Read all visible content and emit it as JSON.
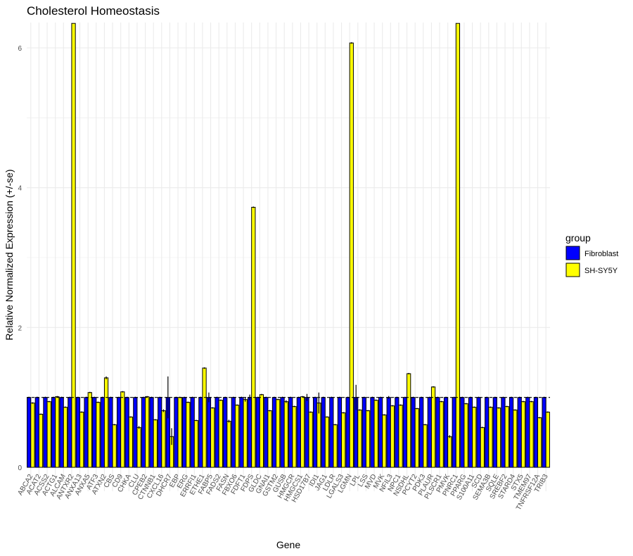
{
  "chart_data": {
    "type": "bar",
    "title": "Cholesterol Homeostasis",
    "xlabel": "Gene",
    "ylabel": "Relative Normalized Expression (+/-se)",
    "ylim": [
      -0.3,
      6.35
    ],
    "yticks": [
      0,
      2,
      4,
      6
    ],
    "reference_line": 1,
    "grid": true,
    "legend": {
      "title": "group",
      "position": "right"
    },
    "categories": [
      "ABCA2",
      "ACAT2",
      "ACSS2",
      "ACTG1",
      "ALCAM",
      "ANTXR2",
      "ANXA13",
      "ANXA5",
      "ATF3",
      "ATXN2",
      "CBS",
      "CD9",
      "CHKA",
      "CLU",
      "CPEB2",
      "CTNNB1",
      "CXCL16",
      "DHCR7",
      "EBP",
      "ERG",
      "ERRFI1",
      "ETHE1",
      "FABP5",
      "FADS2",
      "FASN",
      "FBXO6",
      "FDFT1",
      "FDPS",
      "GLDC",
      "GNAI1",
      "GSTM2",
      "GUSB",
      "HMGCR",
      "HMGCS1",
      "HSD17B7",
      "IDI1",
      "JAG1",
      "LDLR",
      "LGALS3",
      "LGMN",
      "LPL",
      "LSS",
      "MVD",
      "MVK",
      "NFIL3",
      "NPC1",
      "NSDHL",
      "PCYT2",
      "PDK3",
      "PLAUR",
      "PLSCR1",
      "PMVK",
      "PNRC1",
      "PPARG",
      "S100A11",
      "SCD",
      "SEMA3B",
      "SQLE",
      "SREBF2",
      "STARD4",
      "STX5",
      "TMEM97",
      "TNFRSF12A",
      "TRIB3"
    ],
    "series": [
      {
        "name": "Fibroblast",
        "color": "#0000ff",
        "values": [
          1,
          1,
          1,
          1,
          1,
          1,
          1,
          1,
          1,
          1,
          1,
          1,
          1,
          1,
          1,
          1,
          1,
          1,
          1,
          1,
          1,
          1,
          1,
          1,
          1,
          1,
          1,
          1,
          1,
          1,
          1,
          1,
          1,
          1,
          1,
          1,
          1,
          1,
          1,
          1,
          1,
          1,
          1,
          1,
          1,
          1,
          1,
          1,
          1,
          1,
          1,
          1,
          1,
          1,
          1,
          1,
          1,
          1,
          1,
          1,
          1,
          1,
          1,
          1
        ],
        "errors": [
          0.01,
          0.01,
          0.01,
          0.01,
          0.01,
          0.01,
          0.01,
          0.01,
          0.01,
          0.01,
          0.01,
          0.01,
          0.01,
          0.01,
          0.01,
          0.01,
          0.01,
          0.3,
          0.01,
          0.01,
          0.01,
          0.01,
          0.07,
          0.01,
          0.01,
          0.01,
          0.01,
          0.04,
          0.01,
          0.01,
          0.01,
          0.01,
          0.01,
          0.01,
          0.05,
          0.01,
          0.01,
          0.01,
          0.01,
          0.01,
          0.18,
          0.01,
          0.01,
          0.01,
          0.02,
          0.01,
          0.01,
          0.01,
          0.01,
          0.01,
          0.01,
          0.01,
          0.01,
          0.01,
          0.01,
          0.01,
          0.01,
          0.01,
          0.01,
          0.01,
          0.01,
          0.01,
          0.01,
          0.01
        ]
      },
      {
        "name": "SH-SY5Y",
        "color": "#ffff00",
        "values": [
          0.92,
          0.76,
          0.94,
          1.01,
          0.86,
          6.35,
          0.79,
          1.07,
          0.93,
          1.28,
          0.61,
          1.08,
          0.72,
          0.57,
          1.01,
          0.68,
          0.81,
          0.44,
          1.0,
          0.93,
          0.67,
          1.42,
          0.85,
          0.96,
          0.66,
          0.89,
          0.97,
          3.72,
          1.04,
          0.81,
          0.97,
          0.94,
          0.87,
          1.01,
          0.79,
          0.92,
          0.72,
          0.61,
          0.78,
          6.07,
          0.82,
          0.81,
          0.96,
          0.75,
          0.88,
          0.89,
          1.34,
          0.84,
          0.61,
          1.15,
          0.94,
          0.44,
          6.35,
          0.91,
          0.86,
          0.57,
          0.86,
          0.85,
          0.87,
          0.82,
          0.94,
          0.94,
          0.71,
          0.79
        ],
        "errors": [
          0.01,
          0.01,
          0.01,
          0.01,
          0.01,
          0,
          0.01,
          0.01,
          0.01,
          0.02,
          0.01,
          0.01,
          0.01,
          0.02,
          0.01,
          0.01,
          0.02,
          0.12,
          0.01,
          0.01,
          0.01,
          0.01,
          0.01,
          0.01,
          0.02,
          0.01,
          0.03,
          0.01,
          0.01,
          0.01,
          0.01,
          0.02,
          0.01,
          0.01,
          0.01,
          0.15,
          0.01,
          0.01,
          0.01,
          0.01,
          0.01,
          0.01,
          0.01,
          0.01,
          0.01,
          0.01,
          0.01,
          0.01,
          0.01,
          0.01,
          0.01,
          0.02,
          0,
          0.01,
          0.01,
          0.01,
          0.01,
          0.01,
          0.01,
          0.01,
          0.01,
          0.01,
          0.01,
          0.01
        ]
      }
    ]
  }
}
